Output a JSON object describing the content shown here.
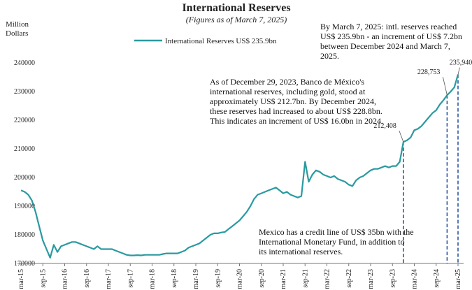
{
  "chart_data": {
    "type": "line",
    "title": "International Reserves",
    "subtitle": "(Figures as of March 7, 2025)",
    "y_label_lines": [
      "Million",
      "Dollars"
    ],
    "categories": [
      "mar-15",
      null,
      null,
      null,
      null,
      null,
      "sep-15",
      null,
      null,
      null,
      null,
      null,
      "mar-16",
      null,
      null,
      null,
      null,
      null,
      "sep-16",
      null,
      null,
      null,
      null,
      null,
      "mar-17",
      null,
      null,
      null,
      null,
      null,
      "sep-17",
      null,
      null,
      null,
      null,
      null,
      "mar-18",
      null,
      null,
      null,
      null,
      null,
      "sep-18",
      null,
      null,
      null,
      null,
      null,
      "mar-19",
      null,
      null,
      null,
      null,
      null,
      "sep-19",
      null,
      null,
      null,
      null,
      null,
      "mar-20",
      null,
      null,
      null,
      null,
      null,
      "sep-20",
      null,
      null,
      null,
      null,
      null,
      "mar-21",
      null,
      null,
      null,
      null,
      null,
      "sep-21",
      null,
      null,
      null,
      null,
      null,
      "mar-22",
      null,
      null,
      null,
      null,
      null,
      "sep-22",
      null,
      null,
      null,
      null,
      null,
      "mar-23",
      null,
      null,
      null,
      null,
      null,
      "sep-23",
      null,
      null,
      null,
      null,
      null,
      "mar-24",
      null,
      null,
      null,
      null,
      null,
      "sep-24",
      null,
      null,
      null,
      null,
      null,
      "mar-25"
    ],
    "series": [
      {
        "name": "International Reserves US$ 235.9bn",
        "color": "#2a9aa0",
        "values": [
          195500,
          195000,
          194000,
          192000,
          188000,
          183000,
          178000,
          175000,
          172000,
          176500,
          174000,
          176000,
          176500,
          177000,
          177500,
          177500,
          177000,
          176500,
          176000,
          175500,
          175000,
          176000,
          175000,
          175000,
          175000,
          175000,
          174500,
          174000,
          173500,
          173000,
          172800,
          172800,
          172900,
          172800,
          173000,
          173000,
          173000,
          173000,
          173000,
          173300,
          173500,
          173500,
          173500,
          173500,
          174000,
          174500,
          175500,
          176000,
          176500,
          177000,
          178000,
          179000,
          180000,
          180500,
          180500,
          180800,
          181000,
          182000,
          183000,
          184000,
          185000,
          186500,
          188000,
          190000,
          192500,
          194000,
          194500,
          195000,
          195500,
          196000,
          196500,
          195500,
          194500,
          195000,
          194000,
          193500,
          193000,
          193500,
          205500,
          198500,
          201000,
          202500,
          202000,
          201000,
          200500,
          200000,
          200500,
          199500,
          199000,
          198500,
          197500,
          197000,
          199000,
          200000,
          200500,
          201500,
          202500,
          203000,
          203000,
          203500,
          204000,
          203500,
          204000,
          204000,
          205500,
          212408,
          213000,
          214000,
          216500,
          217000,
          218000,
          219500,
          221000,
          222500,
          223500,
          225500,
          227000,
          228753,
          230000,
          231500,
          235940
        ],
        "value_labels": [
          null,
          null,
          null,
          null,
          null,
          null,
          null,
          null,
          null,
          null,
          null,
          null,
          null,
          null,
          null,
          null,
          null,
          null,
          null,
          null,
          null,
          null,
          null,
          null,
          null,
          null,
          null,
          null,
          null,
          null,
          null,
          null,
          null,
          null,
          null,
          null,
          null,
          null,
          null,
          null,
          null,
          null,
          null,
          null,
          null,
          null,
          null,
          null,
          null,
          null,
          null,
          null,
          null,
          null,
          null,
          null,
          null,
          null,
          null,
          null,
          null,
          null,
          null,
          null,
          null,
          null,
          null,
          null,
          null,
          null,
          null,
          null,
          null,
          null,
          null,
          null,
          null,
          null,
          null,
          null,
          null,
          null,
          null,
          null,
          null,
          null,
          null,
          null,
          null,
          null,
          null,
          null,
          null,
          null,
          null,
          null,
          null,
          null,
          null,
          null,
          null,
          null,
          null,
          null,
          null,
          "212,408",
          null,
          null,
          null,
          null,
          null,
          null,
          null,
          null,
          null,
          null,
          null,
          "228,753",
          null,
          null,
          "235,940"
        ]
      }
    ],
    "ylim": [
      170000,
      240000
    ],
    "yticks": [
      170000,
      180000,
      190000,
      200000,
      210000,
      220000,
      230000,
      240000
    ],
    "annotations": [
      "By March 7, 2025: intl. reserves reached US$ 235.9bn - an increment of US$ 7.2bn between December 2024 and March 7, 2025.",
      "As of December 29, 2023, Banco de México's international reserves, including gold, stood at approximately US$ 212.7bn. By December 2024, these reserves had increased to about US$ 228.8bn. This indicates an increment of US$ 16.0bn in 2024.",
      "Mexico has a credit line of US$ 35bn with the International Monetary Fund, in addition to its international reserves."
    ]
  }
}
